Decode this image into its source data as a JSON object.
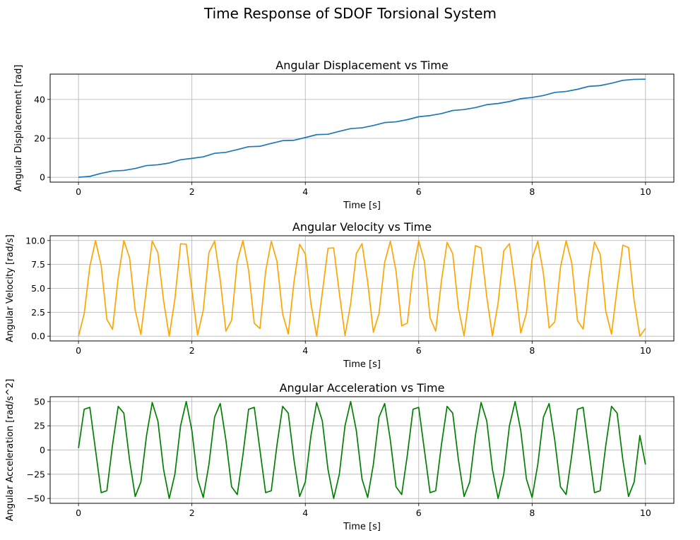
{
  "figure": {
    "title": "Time Response of SDOF Torsional System"
  },
  "chart_data": [
    {
      "type": "line",
      "title": "Angular Displacement vs Time",
      "xlabel": "Time [s]",
      "ylabel": "Angular Displacement [rad]",
      "xlim": [
        -0.5,
        10.5
      ],
      "ylim": [
        -2.5,
        53
      ],
      "xticks": [
        0,
        2,
        4,
        6,
        8,
        10
      ],
      "yticks": [
        0,
        20,
        40
      ],
      "xtick_labels": [
        "0",
        "2",
        "4",
        "6",
        "8",
        "10"
      ],
      "ytick_labels": [
        "0",
        "20",
        "40"
      ],
      "grid": true,
      "color": "#1f77b4",
      "x": [
        0,
        0.2,
        0.4,
        0.6,
        0.8,
        1.0,
        1.2,
        1.4,
        1.6,
        1.8,
        2.0,
        2.2,
        2.4,
        2.6,
        2.8,
        3.0,
        3.2,
        3.4,
        3.6,
        3.8,
        4.0,
        4.2,
        4.4,
        4.6,
        4.8,
        5.0,
        5.2,
        5.4,
        5.6,
        5.8,
        6.0,
        6.2,
        6.4,
        6.6,
        6.8,
        7.0,
        7.2,
        7.4,
        7.6,
        7.8,
        8.0,
        8.2,
        8.4,
        8.6,
        8.8,
        9.0,
        9.2,
        9.4,
        9.6,
        9.8,
        10.0
      ],
      "y": [
        0.0,
        0.45,
        2.0,
        3.2,
        3.5,
        4.5,
        6.0,
        6.4,
        7.3,
        9.0,
        9.7,
        10.5,
        12.3,
        12.8,
        14.2,
        15.7,
        15.9,
        17.4,
        18.8,
        19.0,
        20.4,
        21.9,
        22.1,
        23.6,
        25.0,
        25.4,
        26.6,
        28.1,
        28.5,
        29.6,
        31.1,
        31.7,
        32.7,
        34.3,
        34.8,
        35.8,
        37.3,
        37.9,
        38.9,
        40.4,
        41.0,
        42.0,
        43.6,
        44.1,
        45.2,
        46.7,
        47.1,
        48.3,
        49.8,
        50.3,
        50.4
      ]
    },
    {
      "type": "line",
      "title": "Angular Velocity vs Time",
      "xlabel": "Time [s]",
      "ylabel": "Angular Velocity [rad/s]",
      "xlim": [
        -0.5,
        10.5
      ],
      "ylim": [
        -0.5,
        10.5
      ],
      "xticks": [
        0,
        2,
        4,
        6,
        8,
        10
      ],
      "yticks": [
        0.0,
        2.5,
        5.0,
        7.5,
        10.0
      ],
      "xtick_labels": [
        "0",
        "2",
        "4",
        "6",
        "8",
        "10"
      ],
      "ytick_labels": [
        "0.0",
        "2.5",
        "5.0",
        "7.5",
        "10.0"
      ],
      "grid": true,
      "color": "#ffa500",
      "x": [
        0,
        0.1,
        0.2,
        0.3,
        0.4,
        0.5,
        0.6,
        0.7,
        0.8,
        0.9,
        1.0,
        1.1,
        1.2,
        1.3,
        1.4,
        1.5,
        1.6,
        1.7,
        1.8,
        1.9,
        2.0,
        2.1,
        2.2,
        2.3,
        2.4,
        2.5,
        2.6,
        2.7,
        2.8,
        2.9,
        3.0,
        3.1,
        3.2,
        3.3,
        3.4,
        3.5,
        3.6,
        3.7,
        3.8,
        3.9,
        4.0,
        4.1,
        4.2,
        4.3,
        4.4,
        4.5,
        4.6,
        4.7,
        4.8,
        4.9,
        5.0,
        5.1,
        5.2,
        5.3,
        5.4,
        5.5,
        5.6,
        5.7,
        5.8,
        5.9,
        6.0,
        6.1,
        6.2,
        6.3,
        6.4,
        6.5,
        6.6,
        6.7,
        6.8,
        6.9,
        7.0,
        7.1,
        7.2,
        7.3,
        7.4,
        7.5,
        7.6,
        7.7,
        7.8,
        7.9,
        8.0,
        8.1,
        8.2,
        8.3,
        8.4,
        8.5,
        8.6,
        8.7,
        8.8,
        8.9,
        9.0,
        9.1,
        9.2,
        9.3,
        9.4,
        9.5,
        9.6,
        9.7,
        9.8,
        9.9,
        10.0
      ],
      "y": [
        0.0,
        2.34,
        7.3,
        9.99,
        7.37,
        1.75,
        0.72,
        6.11,
        9.99,
        8.2,
        2.7,
        0.17,
        5.1,
        9.96,
        8.73,
        3.72,
        0.0,
        3.88,
        9.66,
        9.62,
        4.8,
        0.12,
        2.71,
        8.73,
        9.95,
        5.87,
        0.53,
        1.67,
        7.83,
        9.99,
        6.91,
        1.35,
        0.8,
        6.78,
        9.92,
        7.82,
        2.32,
        0.23,
        5.67,
        9.61,
        8.59,
        3.38,
        0.0,
        4.56,
        9.19,
        9.23,
        4.51,
        0.06,
        3.42,
        8.63,
        9.68,
        5.67,
        0.42,
        2.36,
        7.74,
        9.94,
        6.81,
        1.08,
        1.37,
        6.81,
        9.98,
        7.82,
        1.93,
        0.53,
        5.74,
        9.81,
        8.63,
        2.96,
        0.03,
        4.6,
        9.46,
        9.24,
        4.12,
        0.02,
        3.47,
        8.92,
        9.68,
        5.34,
        0.33,
        2.42,
        8.13,
        9.93,
        6.53,
        0.87,
        1.5,
        7.2,
        9.99,
        7.64,
        1.64,
        0.74,
        6.16,
        9.85,
        8.58,
        2.6,
        0.22,
        5.02,
        9.52,
        9.27,
        3.7,
        0.0,
        0.82
      ]
    },
    {
      "type": "line",
      "title": "Angular Acceleration vs Time",
      "xlabel": "Time [s]",
      "ylabel": "Angular Acceleration [rad/s^2]",
      "xlim": [
        -0.5,
        10.5
      ],
      "ylim": [
        -55,
        55
      ],
      "xticks": [
        0,
        2,
        4,
        6,
        8,
        10
      ],
      "yticks": [
        -50,
        -25,
        0,
        25,
        50
      ],
      "xtick_labels": [
        "0",
        "2",
        "4",
        "6",
        "8",
        "10"
      ],
      "ytick_labels": [
        "−50",
        "−25",
        "0",
        "25",
        "50"
      ],
      "grid": true,
      "color": "#008000",
      "x": [
        0,
        0.1,
        0.2,
        0.3,
        0.4,
        0.5,
        0.6,
        0.7,
        0.8,
        0.9,
        1.0,
        1.1,
        1.2,
        1.3,
        1.4,
        1.5,
        1.6,
        1.7,
        1.8,
        1.9,
        2.0,
        2.1,
        2.2,
        2.3,
        2.4,
        2.5,
        2.6,
        2.7,
        2.8,
        2.9,
        3.0,
        3.1,
        3.2,
        3.3,
        3.4,
        3.5,
        3.6,
        3.7,
        3.8,
        3.9,
        4.0,
        4.1,
        4.2,
        4.3,
        4.4,
        4.5,
        4.6,
        4.7,
        4.8,
        4.9,
        5.0,
        5.1,
        5.2,
        5.3,
        5.4,
        5.5,
        5.6,
        5.7,
        5.8,
        5.9,
        6.0,
        6.1,
        6.2,
        6.3,
        6.4,
        6.5,
        6.6,
        6.7,
        6.8,
        6.9,
        7.0,
        7.1,
        7.2,
        7.3,
        7.4,
        7.5,
        7.6,
        7.7,
        7.8,
        7.9,
        8.0,
        8.1,
        8.2,
        8.3,
        8.4,
        8.5,
        8.6,
        8.7,
        8.8,
        8.9,
        9.0,
        9.1,
        9.2,
        9.3,
        9.4,
        9.5,
        9.6,
        9.7,
        9.8,
        9.9,
        10.0
      ],
      "y": [
        2.0,
        42.0,
        44.0,
        0.0,
        -44.0,
        -42.0,
        5.0,
        45.0,
        38.0,
        -10.0,
        -48.0,
        -33.0,
        15.0,
        49.0,
        30.0,
        -20.0,
        -50.0,
        -25.0,
        25.0,
        50.0,
        20.0,
        -30.0,
        -49.0,
        -15.0,
        34.0,
        48.0,
        10.0,
        -38.0,
        -46.0,
        -5.0,
        42.0,
        44.0,
        0.0,
        -44.0,
        -42.0,
        5.0,
        45.0,
        38.0,
        -10.0,
        -48.0,
        -33.0,
        15.0,
        49.0,
        30.0,
        -20.0,
        -50.0,
        -25.0,
        25.0,
        50.0,
        20.0,
        -30.0,
        -49.0,
        -15.0,
        34.0,
        48.0,
        10.0,
        -38.0,
        -46.0,
        -5.0,
        42.0,
        44.0,
        0.0,
        -44.0,
        -42.0,
        5.0,
        45.0,
        38.0,
        -10.0,
        -48.0,
        -33.0,
        15.0,
        49.0,
        30.0,
        -20.0,
        -50.0,
        -25.0,
        25.0,
        50.0,
        20.0,
        -30.0,
        -49.0,
        -15.0,
        34.0,
        48.0,
        10.0,
        -38.0,
        -46.0,
        -5.0,
        42.0,
        44.0,
        0.0,
        -44.0,
        -42.0,
        5.0,
        45.0,
        38.0,
        -10.0,
        -48.0,
        -33.0,
        15.0,
        -15.0
      ]
    }
  ]
}
